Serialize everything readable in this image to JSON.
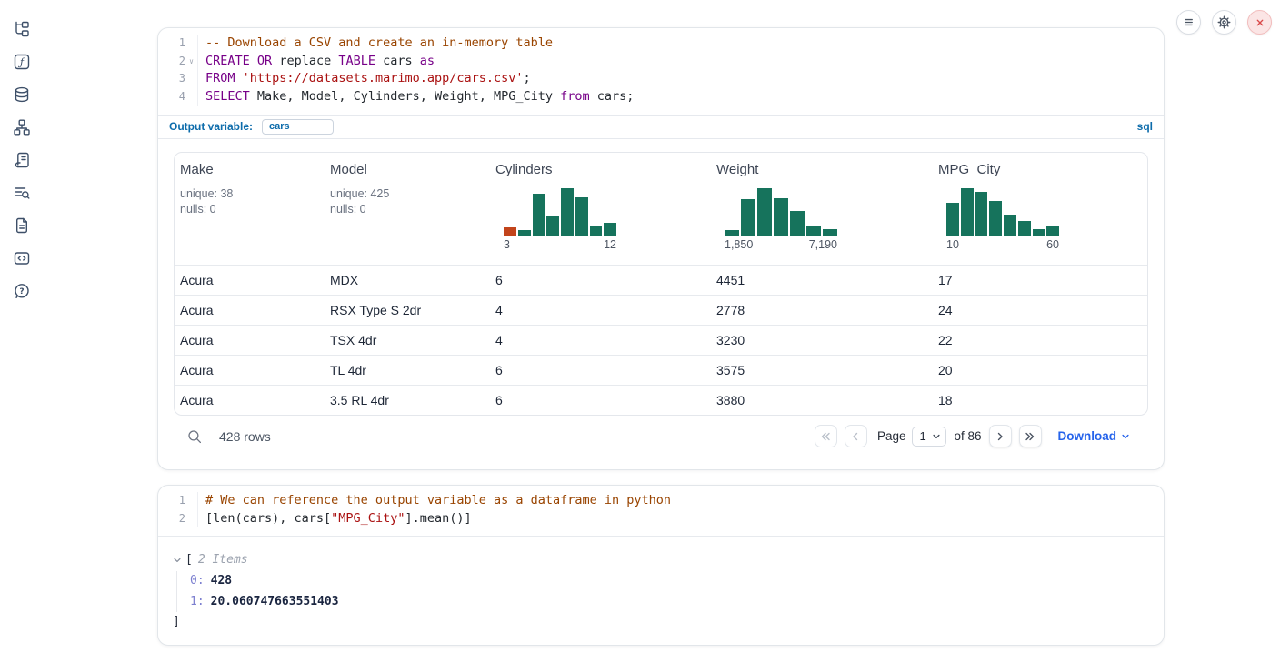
{
  "theme": {
    "hist_green": "#16735c",
    "hist_orange": "#c2441b",
    "accent_blue": "#0d6cab",
    "link_blue": "#2563eb",
    "danger_red": "#d94848"
  },
  "sidebar": {
    "items": [
      {
        "id": "file-explorer",
        "icon": "file-tree-icon"
      },
      {
        "id": "variables",
        "icon": "function-square-icon"
      },
      {
        "id": "data-sources",
        "icon": "database-icon"
      },
      {
        "id": "dependencies",
        "icon": "dependency-graph-icon"
      },
      {
        "id": "scratchpad",
        "icon": "scroll-icon"
      },
      {
        "id": "logs",
        "icon": "list-search-icon"
      },
      {
        "id": "documentation",
        "icon": "file-text-icon"
      },
      {
        "id": "snippets",
        "icon": "code-box-icon"
      },
      {
        "id": "help",
        "icon": "help-circle-icon"
      }
    ]
  },
  "topbar": {
    "buttons": [
      {
        "id": "menu",
        "icon": "hamburger-icon"
      },
      {
        "id": "settings",
        "icon": "gear-icon"
      },
      {
        "id": "shutdown",
        "icon": "close-icon"
      }
    ]
  },
  "cell1": {
    "language_badge": "sql",
    "code": [
      {
        "n": "1",
        "fold": false,
        "tokens": [
          [
            "com",
            "-- Download a CSV and create an in-memory table"
          ]
        ]
      },
      {
        "n": "2",
        "fold": true,
        "tokens": [
          [
            "kw",
            "CREATE"
          ],
          [
            "pl",
            " "
          ],
          [
            "kw",
            "OR"
          ],
          [
            "pl",
            " replace "
          ],
          [
            "kw",
            "TABLE"
          ],
          [
            "pl",
            " cars "
          ],
          [
            "kw",
            "as"
          ]
        ]
      },
      {
        "n": "3",
        "fold": false,
        "tokens": [
          [
            "kw",
            "FROM"
          ],
          [
            "pl",
            " "
          ],
          [
            "str",
            "'https://datasets.marimo.app/cars.csv'"
          ],
          [
            "pl",
            ";"
          ]
        ]
      },
      {
        "n": "4",
        "fold": false,
        "tokens": [
          [
            "kw",
            "SELECT"
          ],
          [
            "pl",
            " Make, Model, Cylinders, Weight, MPG_City "
          ],
          [
            "kw",
            "from"
          ],
          [
            "pl",
            " cars;"
          ]
        ]
      }
    ],
    "output_variable": {
      "label": "Output variable:",
      "value": "cars"
    },
    "table": {
      "columns": [
        {
          "name": "Make",
          "stats": [
            "unique: 38",
            "nulls: 0"
          ]
        },
        {
          "name": "Model",
          "stats": [
            "unique: 425",
            "nulls: 0"
          ]
        },
        {
          "name": "Cylinders",
          "histogram": {
            "type": "bar",
            "values": [
              17,
              11,
              88,
              41,
              100,
              80,
              20,
              26
            ],
            "highlight_first": true,
            "min": "3",
            "max": "12"
          }
        },
        {
          "name": "Weight",
          "histogram": {
            "type": "bar",
            "values": [
              12,
              76,
              100,
              79,
              51,
              19,
              13
            ],
            "min": "1,850",
            "max": "7,190"
          }
        },
        {
          "name": "MPG_City",
          "histogram": {
            "type": "bar",
            "values": [
              68,
              100,
              92,
              72,
              44,
              30,
              13,
              21
            ],
            "min": "10",
            "max": "60"
          }
        }
      ],
      "rows": [
        [
          "Acura",
          "MDX",
          "6",
          "4451",
          "17"
        ],
        [
          "Acura",
          "RSX Type S 2dr",
          "4",
          "2778",
          "24"
        ],
        [
          "Acura",
          "TSX 4dr",
          "4",
          "3230",
          "22"
        ],
        [
          "Acura",
          "TL 4dr",
          "6",
          "3575",
          "20"
        ],
        [
          "Acura",
          "3.5 RL 4dr",
          "6",
          "3880",
          "18"
        ]
      ]
    },
    "footer": {
      "row_count": "428 rows",
      "page_label": "Page",
      "page_value": "1",
      "of_label": "of 86",
      "download_label": "Download"
    }
  },
  "cell2": {
    "code": [
      {
        "n": "1",
        "fold": false,
        "tokens": [
          [
            "com",
            "# We can reference the output variable as a dataframe in python"
          ]
        ]
      },
      {
        "n": "2",
        "fold": false,
        "tokens": [
          [
            "pl",
            "[len(cars), cars["
          ],
          [
            "str",
            "\"MPG_City\""
          ],
          [
            "pl",
            "].mean()]"
          ]
        ]
      }
    ],
    "output": {
      "bracket_open": "[",
      "items_label": "2 Items",
      "entries": [
        {
          "key": "0:",
          "value": "428"
        },
        {
          "key": "1:",
          "value": "20.060747663551403"
        }
      ],
      "bracket_close": "]"
    }
  }
}
